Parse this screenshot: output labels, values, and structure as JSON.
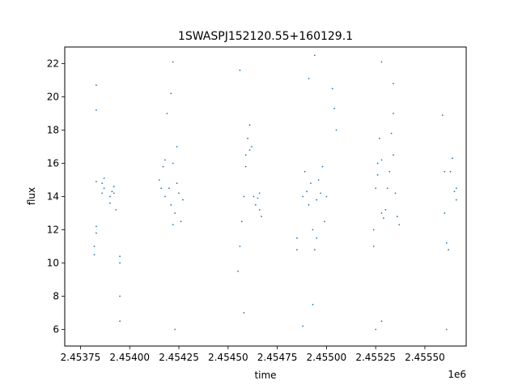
{
  "chart_data": {
    "type": "scatter",
    "title": "1SWASPJ152120.55+160129.1",
    "xlabel": "time",
    "ylabel": "flux",
    "x_offset_label": "1e6",
    "xlim": [
      2.45367,
      2.45571
    ],
    "ylim": [
      5.0,
      23.0
    ],
    "x_ticks": [
      2.45375,
      2.454,
      2.45425,
      2.4545,
      2.45475,
      2.455,
      2.45525,
      2.4555
    ],
    "x_tick_labels": [
      "2.45375",
      "2.45400",
      "2.45425",
      "2.45450",
      "2.45475",
      "2.45500",
      "2.45525",
      "2.45550"
    ],
    "y_ticks": [
      6,
      8,
      10,
      12,
      14,
      16,
      18,
      20,
      22
    ],
    "y_tick_labels": [
      "6",
      "8",
      "10",
      "12",
      "14",
      "16",
      "18",
      "20",
      "22"
    ],
    "grid": false,
    "marker_color": "#1f77b4",
    "series": [
      {
        "values": [
          [
            2.45382,
            11.0
          ],
          [
            2.45382,
            10.5
          ],
          [
            2.45383,
            11.8
          ],
          [
            2.45383,
            12.2
          ],
          [
            2.45383,
            14.9
          ],
          [
            2.45383,
            19.2
          ],
          [
            2.45383,
            20.7
          ],
          [
            2.45386,
            14.2
          ],
          [
            2.45386,
            14.8
          ],
          [
            2.45387,
            14.5
          ],
          [
            2.45387,
            15.1
          ],
          [
            2.4539,
            14.0
          ],
          [
            2.4539,
            13.6
          ],
          [
            2.45391,
            14.3
          ],
          [
            2.45392,
            14.6
          ],
          [
            2.45392,
            14.2
          ],
          [
            2.45393,
            13.2
          ],
          [
            2.45395,
            10.4
          ],
          [
            2.45395,
            10.0
          ],
          [
            2.45395,
            8.0
          ],
          [
            2.45395,
            6.5
          ],
          [
            2.45415,
            15.0
          ],
          [
            2.45416,
            14.5
          ],
          [
            2.45417,
            15.8
          ],
          [
            2.45418,
            16.2
          ],
          [
            2.45418,
            14.0
          ],
          [
            2.45419,
            19.0
          ],
          [
            2.4542,
            14.5
          ],
          [
            2.45421,
            13.5
          ],
          [
            2.45422,
            12.3
          ],
          [
            2.45422,
            16.0
          ],
          [
            2.45423,
            13.0
          ],
          [
            2.45424,
            14.8
          ],
          [
            2.45424,
            17.0
          ],
          [
            2.45425,
            14.2
          ],
          [
            2.45426,
            12.5
          ],
          [
            2.45427,
            13.8
          ],
          [
            2.45422,
            22.1
          ],
          [
            2.45421,
            20.2
          ],
          [
            2.45423,
            6.0
          ],
          [
            2.45455,
            9.5
          ],
          [
            2.45456,
            11.0
          ],
          [
            2.45457,
            12.5
          ],
          [
            2.45458,
            14.0
          ],
          [
            2.45459,
            15.8
          ],
          [
            2.45459,
            16.5
          ],
          [
            2.4546,
            17.5
          ],
          [
            2.45461,
            18.3
          ],
          [
            2.45461,
            16.8
          ],
          [
            2.45462,
            17.0
          ],
          [
            2.45463,
            14.0
          ],
          [
            2.45464,
            13.5
          ],
          [
            2.45465,
            13.9
          ],
          [
            2.45466,
            14.2
          ],
          [
            2.45466,
            13.2
          ],
          [
            2.45467,
            12.8
          ],
          [
            2.45456,
            21.6
          ],
          [
            2.45458,
            7.0
          ],
          [
            2.45485,
            11.5
          ],
          [
            2.45485,
            10.8
          ],
          [
            2.45488,
            14.0
          ],
          [
            2.45489,
            15.5
          ],
          [
            2.4549,
            14.3
          ],
          [
            2.45491,
            13.5
          ],
          [
            2.45492,
            14.8
          ],
          [
            2.45493,
            12.0
          ],
          [
            2.45494,
            10.8
          ],
          [
            2.45495,
            11.5
          ],
          [
            2.45495,
            13.8
          ],
          [
            2.45496,
            15.0
          ],
          [
            2.45497,
            14.2
          ],
          [
            2.45498,
            15.8
          ],
          [
            2.45499,
            12.5
          ],
          [
            2.455,
            14.0
          ],
          [
            2.45503,
            20.5
          ],
          [
            2.45504,
            19.3
          ],
          [
            2.45505,
            18.0
          ],
          [
            2.45491,
            21.1
          ],
          [
            2.45494,
            22.5
          ],
          [
            2.45493,
            7.5
          ],
          [
            2.45488,
            6.2
          ],
          [
            2.45524,
            12.0
          ],
          [
            2.45524,
            11.0
          ],
          [
            2.45525,
            14.5
          ],
          [
            2.45526,
            16.0
          ],
          [
            2.45526,
            15.3
          ],
          [
            2.45527,
            17.5
          ],
          [
            2.45528,
            16.2
          ],
          [
            2.45528,
            13.0
          ],
          [
            2.45529,
            12.7
          ],
          [
            2.4553,
            13.2
          ],
          [
            2.45531,
            14.5
          ],
          [
            2.45532,
            15.5
          ],
          [
            2.45533,
            17.8
          ],
          [
            2.45534,
            16.5
          ],
          [
            2.45535,
            14.2
          ],
          [
            2.45536,
            12.8
          ],
          [
            2.45537,
            12.3
          ],
          [
            2.45528,
            22.1
          ],
          [
            2.45534,
            20.8
          ],
          [
            2.45534,
            19.0
          ],
          [
            2.45525,
            6.0
          ],
          [
            2.45528,
            6.5
          ],
          [
            2.45559,
            18.9
          ],
          [
            2.4556,
            15.5
          ],
          [
            2.4556,
            13.0
          ],
          [
            2.45561,
            11.2
          ],
          [
            2.45562,
            10.8
          ],
          [
            2.45563,
            15.5
          ],
          [
            2.45564,
            16.3
          ],
          [
            2.45565,
            14.3
          ],
          [
            2.45566,
            13.8
          ],
          [
            2.45566,
            14.5
          ],
          [
            2.45561,
            6.0
          ]
        ]
      }
    ]
  }
}
